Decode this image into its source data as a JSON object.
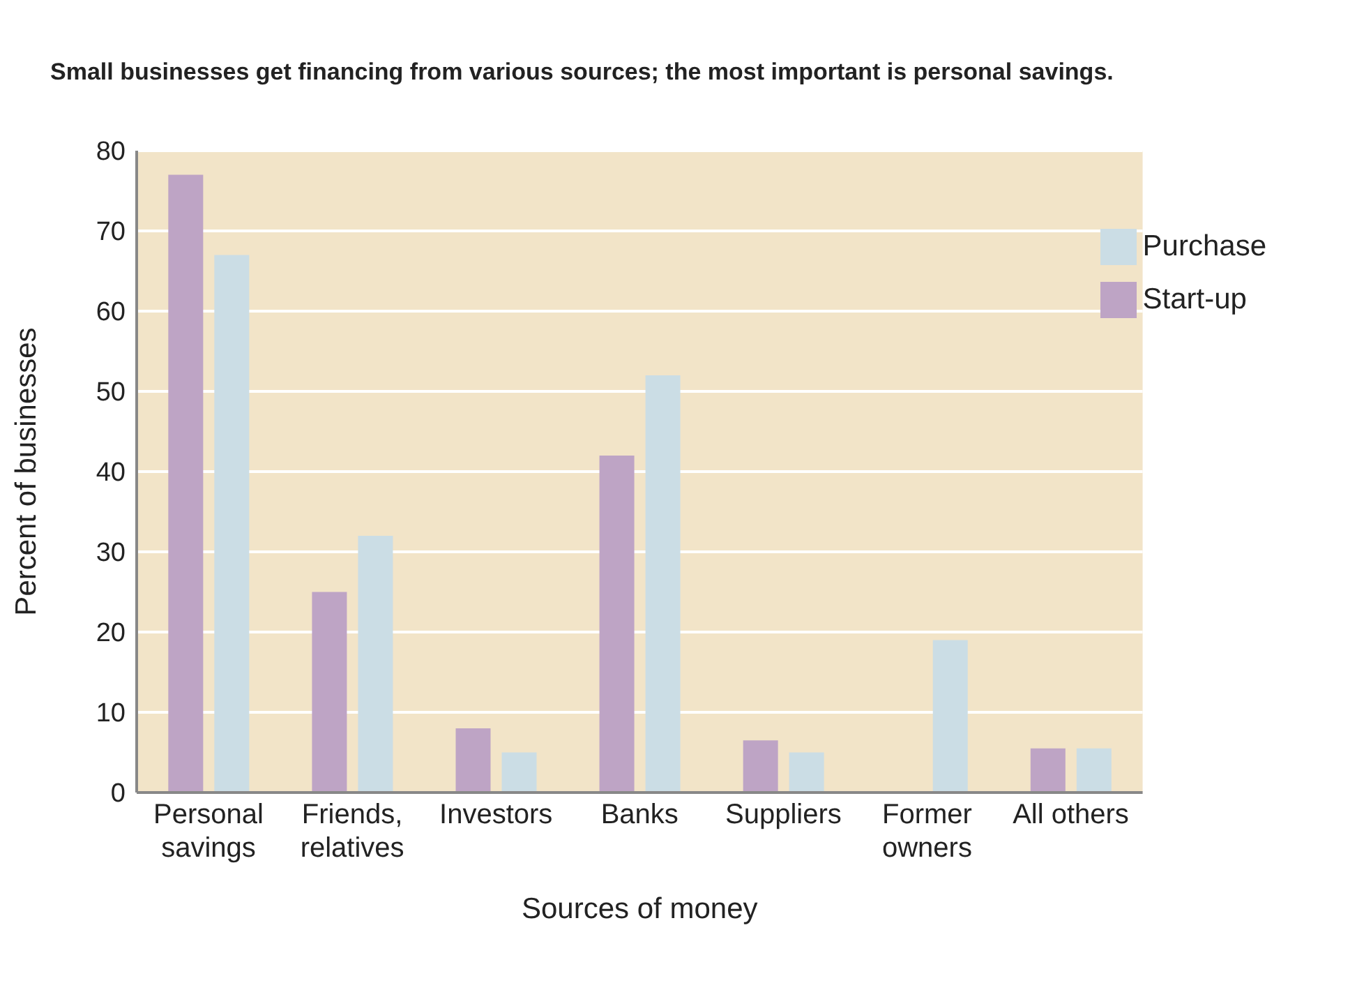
{
  "chart_data": {
    "type": "bar",
    "title": "Small businesses get financing from various sources; the most important is personal savings.",
    "xlabel": "Sources of money",
    "ylabel": "Percent of businesses",
    "categories": [
      "Personal savings",
      "Friends, relatives",
      "Investors",
      "Banks",
      "Suppliers",
      "Former owners",
      "All others"
    ],
    "series": [
      {
        "name": "Start-up",
        "color": "#bea4c5",
        "values": [
          77,
          25,
          8,
          42,
          6.5,
          null,
          5.5
        ]
      },
      {
        "name": "Purchase",
        "color": "#cbdde5",
        "values": [
          67,
          32,
          5,
          52,
          5,
          19,
          5.5
        ]
      }
    ],
    "ylim": [
      0,
      80
    ],
    "yticks": [
      0,
      10,
      20,
      30,
      40,
      50,
      60,
      70,
      80
    ],
    "grid": "y",
    "legend": "top right"
  }
}
